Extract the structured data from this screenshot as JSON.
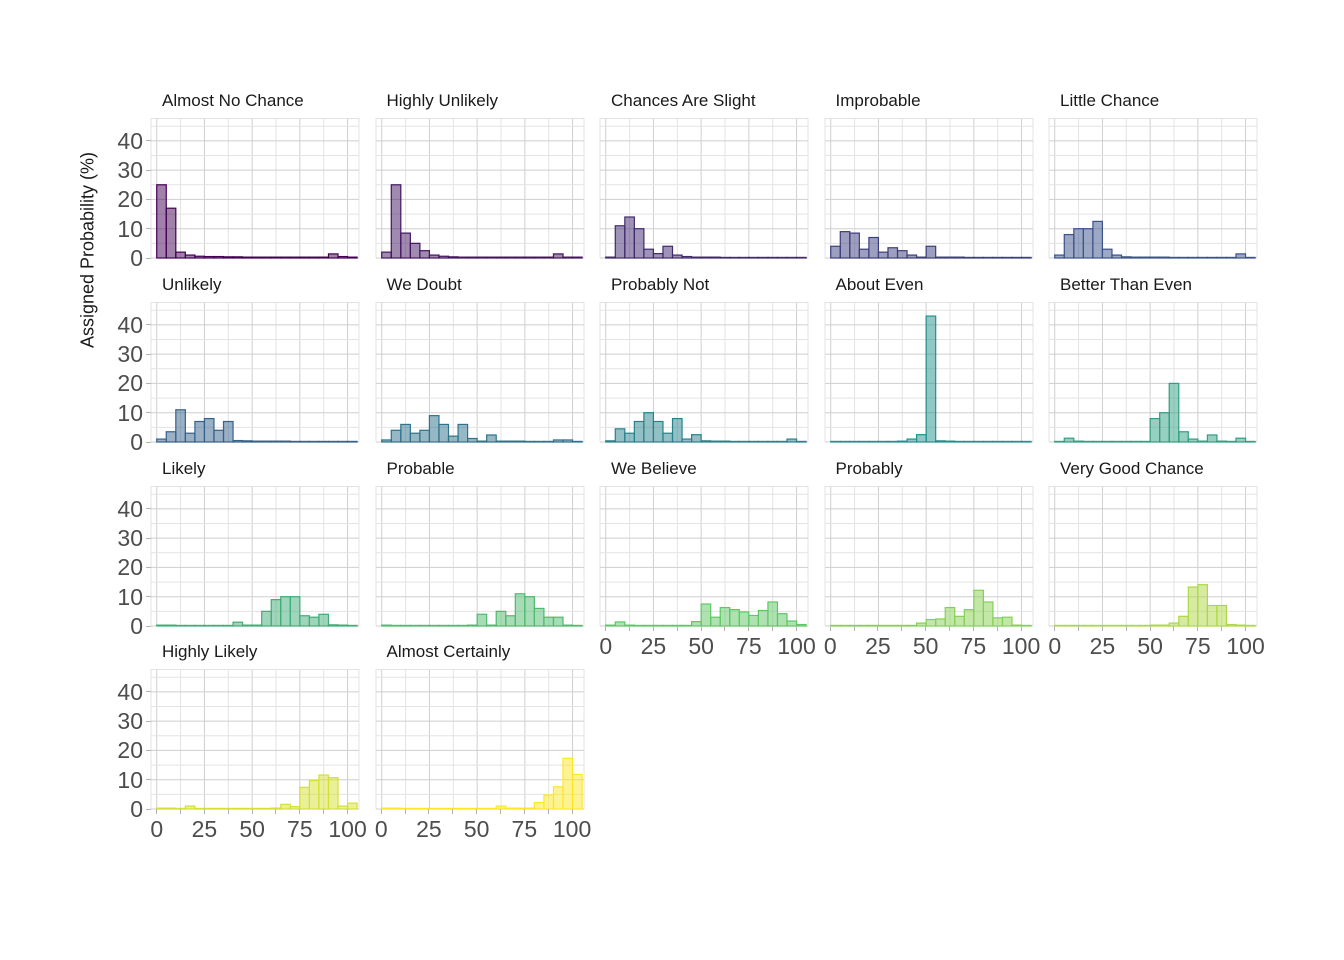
{
  "chart_data": {
    "type": "histogram",
    "title": "",
    "xlabel": "",
    "ylabel": "Assigned Probability (%)",
    "x_ticks": [
      0,
      25,
      50,
      75,
      100
    ],
    "y_ticks": [
      0,
      10,
      20,
      30,
      40
    ],
    "xlim": [
      -3,
      106
    ],
    "ylim": [
      0,
      47.8
    ],
    "bin_width": 5,
    "bin_left_edges": [
      0,
      5,
      10,
      15,
      20,
      25,
      30,
      35,
      40,
      45,
      50,
      55,
      60,
      65,
      70,
      75,
      80,
      85,
      90,
      95,
      100
    ],
    "grid": "on",
    "legend_position": "none",
    "layout": {
      "columns": 5,
      "rows": 4,
      "facets_per_row": [
        5,
        5,
        5,
        2
      ]
    },
    "facets": [
      {
        "label": "Almost No Chance",
        "color": "#440154",
        "values": [
          25,
          17,
          2,
          1,
          0.6,
          0.5,
          0.5,
          0.4,
          0.4,
          0.3,
          0.3,
          0.3,
          0.3,
          0.3,
          0.3,
          0.3,
          0.3,
          0.3,
          1.4,
          0.5,
          0.3
        ]
      },
      {
        "label": "Highly Unlikely",
        "color": "#421562",
        "values": [
          2,
          25,
          8.5,
          5,
          2.5,
          1,
          0.6,
          0.4,
          0.3,
          0.3,
          0.3,
          0.3,
          0.3,
          0.3,
          0.3,
          0.3,
          0.3,
          0.3,
          1.4,
          0.3,
          0.3
        ]
      },
      {
        "label": "Chances Are Slight",
        "color": "#402A6F",
        "values": [
          0.3,
          11,
          14,
          10,
          3,
          1.5,
          4,
          1,
          0.5,
          0.3,
          0.3,
          0.3,
          0.2,
          0.2,
          0.2,
          0.2,
          0.2,
          0.2,
          0.2,
          0.2,
          0.2
        ]
      },
      {
        "label": "Improbable",
        "color": "#3D3E7D",
        "values": [
          4,
          9,
          8.5,
          3,
          7,
          2,
          3.5,
          2.5,
          1,
          0.3,
          4,
          0.3,
          0.3,
          0.3,
          0.2,
          0.2,
          0.2,
          0.2,
          0.2,
          0.2,
          0.2
        ]
      },
      {
        "label": "Little Chance",
        "color": "#3B528B",
        "values": [
          1,
          8,
          10,
          10,
          12.5,
          3,
          1,
          0.4,
          0.3,
          0.3,
          0.3,
          0.3,
          0.2,
          0.2,
          0.2,
          0.2,
          0.2,
          0.2,
          0.2,
          1.4,
          0.2
        ]
      },
      {
        "label": "Unlikely",
        "color": "#35628B",
        "values": [
          1,
          3.5,
          11,
          3,
          7,
          8,
          4,
          7,
          0.5,
          0.4,
          0.3,
          0.3,
          0.3,
          0.3,
          0.2,
          0.2,
          0.2,
          0.2,
          0.2,
          0.2,
          0.2
        ]
      },
      {
        "label": "We Doubt",
        "color": "#2E728C",
        "values": [
          0.7,
          4,
          6,
          3,
          4,
          9,
          6,
          2,
          6,
          1.2,
          0.3,
          2.4,
          0.3,
          0.3,
          0.3,
          0.2,
          0.2,
          0.2,
          0.7,
          0.7,
          0.2
        ]
      },
      {
        "label": "Probably Not",
        "color": "#28818C",
        "values": [
          0.4,
          4.5,
          3,
          7,
          10,
          7,
          3,
          8,
          1,
          2.5,
          0.4,
          0.3,
          0.3,
          0.2,
          0.2,
          0.2,
          0.2,
          0.2,
          0.2,
          1,
          0.2
        ]
      },
      {
        "label": "About Even",
        "color": "#21918C",
        "values": [
          0.2,
          0.2,
          0.2,
          0.2,
          0.2,
          0.2,
          0.2,
          0.3,
          1,
          2.5,
          43,
          0.4,
          0.3,
          0.2,
          0.2,
          0.2,
          0.2,
          0.2,
          0.2,
          0.2,
          0.2
        ]
      },
      {
        "label": "Better Than Even",
        "color": "#309F82",
        "values": [
          0.2,
          1.3,
          0.3,
          0.2,
          0.2,
          0.2,
          0.2,
          0.2,
          0.2,
          0.2,
          8,
          10,
          20,
          3.5,
          1,
          0.3,
          2.4,
          0.3,
          0.2,
          1.3,
          0.2
        ]
      },
      {
        "label": "Likely",
        "color": "#3FAD78",
        "values": [
          0.3,
          0.3,
          0.2,
          0.2,
          0.2,
          0.2,
          0.2,
          0.2,
          1.3,
          0.3,
          0.3,
          5,
          9,
          10,
          10,
          3.5,
          3,
          4,
          0.4,
          0.3,
          0.2
        ]
      },
      {
        "label": "Probable",
        "color": "#4EBA6D",
        "values": [
          0.3,
          0.2,
          0.2,
          0.2,
          0.2,
          0.2,
          0.2,
          0.2,
          0.2,
          0.3,
          4,
          0.3,
          5,
          3.5,
          11,
          10,
          6,
          3,
          3,
          0.3,
          0.2
        ]
      },
      {
        "label": "We Believe",
        "color": "#5DC863",
        "values": [
          0.3,
          1.4,
          0.3,
          0.2,
          0.2,
          0.2,
          0.2,
          0.2,
          0.2,
          1.5,
          7.5,
          3,
          6.3,
          5.6,
          4.8,
          3.6,
          5.3,
          8.2,
          4.2,
          1.7,
          0.5
        ]
      },
      {
        "label": "Probably",
        "color": "#85D054",
        "values": [
          0.2,
          0.2,
          0.2,
          0.2,
          0.2,
          0.2,
          0.2,
          0.2,
          0.2,
          1,
          2.2,
          2.4,
          6.3,
          3.3,
          5.6,
          12.2,
          8.2,
          2.8,
          3,
          0.3,
          0.2
        ]
      },
      {
        "label": "Very Good Chance",
        "color": "#ADD844",
        "values": [
          0.2,
          0.2,
          0.2,
          0.2,
          0.2,
          0.2,
          0.2,
          0.2,
          0.2,
          0.2,
          0.3,
          0.3,
          1,
          3.3,
          13.3,
          14.1,
          7,
          7,
          0.5,
          0.3,
          0.2
        ]
      },
      {
        "label": "Highly Likely",
        "color": "#D5DF35",
        "values": [
          0.3,
          0.3,
          0.2,
          1,
          0.2,
          0.2,
          0.2,
          0.2,
          0.2,
          0.2,
          0.2,
          0.2,
          0.3,
          1.6,
          0.8,
          7.4,
          9.7,
          11.6,
          10.7,
          1,
          2
        ]
      },
      {
        "label": "Almost Certainly",
        "color": "#FDE725",
        "values": [
          0.3,
          0.3,
          0.2,
          0.2,
          0.2,
          0.2,
          0.2,
          0.2,
          0.2,
          0.2,
          0.2,
          0.2,
          1,
          0.3,
          0.3,
          0.3,
          2.2,
          4.8,
          7.6,
          17.3,
          11.8
        ]
      }
    ]
  }
}
